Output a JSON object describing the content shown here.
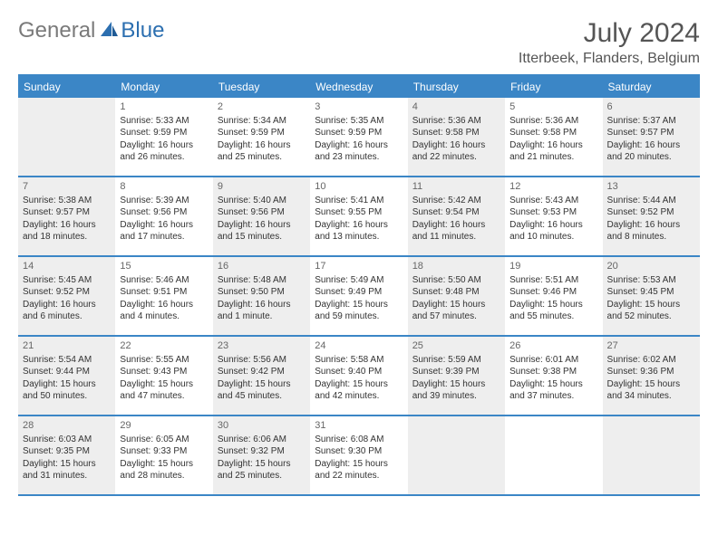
{
  "brand": {
    "general": "General",
    "blue": "Blue"
  },
  "title": {
    "month_year": "July 2024",
    "location": "Itterbeek, Flanders, Belgium"
  },
  "colors": {
    "header_bg": "#3b86c6",
    "header_text": "#ffffff",
    "shade_bg": "#eeeeee",
    "border": "#3b86c6",
    "text": "#333333",
    "brand_gray": "#7a7a7a",
    "brand_blue": "#2c6fb0"
  },
  "dayheads": [
    "Sunday",
    "Monday",
    "Tuesday",
    "Wednesday",
    "Thursday",
    "Friday",
    "Saturday"
  ],
  "weeks": [
    [
      {
        "shade": true
      },
      {
        "n": "1",
        "sunrise": "Sunrise: 5:33 AM",
        "sunset": "Sunset: 9:59 PM",
        "d1": "Daylight: 16 hours",
        "d2": "and 26 minutes."
      },
      {
        "n": "2",
        "sunrise": "Sunrise: 5:34 AM",
        "sunset": "Sunset: 9:59 PM",
        "d1": "Daylight: 16 hours",
        "d2": "and 25 minutes."
      },
      {
        "n": "3",
        "sunrise": "Sunrise: 5:35 AM",
        "sunset": "Sunset: 9:59 PM",
        "d1": "Daylight: 16 hours",
        "d2": "and 23 minutes."
      },
      {
        "n": "4",
        "shade": true,
        "sunrise": "Sunrise: 5:36 AM",
        "sunset": "Sunset: 9:58 PM",
        "d1": "Daylight: 16 hours",
        "d2": "and 22 minutes."
      },
      {
        "n": "5",
        "sunrise": "Sunrise: 5:36 AM",
        "sunset": "Sunset: 9:58 PM",
        "d1": "Daylight: 16 hours",
        "d2": "and 21 minutes."
      },
      {
        "n": "6",
        "shade": true,
        "sunrise": "Sunrise: 5:37 AM",
        "sunset": "Sunset: 9:57 PM",
        "d1": "Daylight: 16 hours",
        "d2": "and 20 minutes."
      }
    ],
    [
      {
        "n": "7",
        "shade": true,
        "sunrise": "Sunrise: 5:38 AM",
        "sunset": "Sunset: 9:57 PM",
        "d1": "Daylight: 16 hours",
        "d2": "and 18 minutes."
      },
      {
        "n": "8",
        "sunrise": "Sunrise: 5:39 AM",
        "sunset": "Sunset: 9:56 PM",
        "d1": "Daylight: 16 hours",
        "d2": "and 17 minutes."
      },
      {
        "n": "9",
        "shade": true,
        "sunrise": "Sunrise: 5:40 AM",
        "sunset": "Sunset: 9:56 PM",
        "d1": "Daylight: 16 hours",
        "d2": "and 15 minutes."
      },
      {
        "n": "10",
        "sunrise": "Sunrise: 5:41 AM",
        "sunset": "Sunset: 9:55 PM",
        "d1": "Daylight: 16 hours",
        "d2": "and 13 minutes."
      },
      {
        "n": "11",
        "shade": true,
        "sunrise": "Sunrise: 5:42 AM",
        "sunset": "Sunset: 9:54 PM",
        "d1": "Daylight: 16 hours",
        "d2": "and 11 minutes."
      },
      {
        "n": "12",
        "sunrise": "Sunrise: 5:43 AM",
        "sunset": "Sunset: 9:53 PM",
        "d1": "Daylight: 16 hours",
        "d2": "and 10 minutes."
      },
      {
        "n": "13",
        "shade": true,
        "sunrise": "Sunrise: 5:44 AM",
        "sunset": "Sunset: 9:52 PM",
        "d1": "Daylight: 16 hours",
        "d2": "and 8 minutes."
      }
    ],
    [
      {
        "n": "14",
        "shade": true,
        "sunrise": "Sunrise: 5:45 AM",
        "sunset": "Sunset: 9:52 PM",
        "d1": "Daylight: 16 hours",
        "d2": "and 6 minutes."
      },
      {
        "n": "15",
        "sunrise": "Sunrise: 5:46 AM",
        "sunset": "Sunset: 9:51 PM",
        "d1": "Daylight: 16 hours",
        "d2": "and 4 minutes."
      },
      {
        "n": "16",
        "shade": true,
        "sunrise": "Sunrise: 5:48 AM",
        "sunset": "Sunset: 9:50 PM",
        "d1": "Daylight: 16 hours",
        "d2": "and 1 minute."
      },
      {
        "n": "17",
        "sunrise": "Sunrise: 5:49 AM",
        "sunset": "Sunset: 9:49 PM",
        "d1": "Daylight: 15 hours",
        "d2": "and 59 minutes."
      },
      {
        "n": "18",
        "shade": true,
        "sunrise": "Sunrise: 5:50 AM",
        "sunset": "Sunset: 9:48 PM",
        "d1": "Daylight: 15 hours",
        "d2": "and 57 minutes."
      },
      {
        "n": "19",
        "sunrise": "Sunrise: 5:51 AM",
        "sunset": "Sunset: 9:46 PM",
        "d1": "Daylight: 15 hours",
        "d2": "and 55 minutes."
      },
      {
        "n": "20",
        "shade": true,
        "sunrise": "Sunrise: 5:53 AM",
        "sunset": "Sunset: 9:45 PM",
        "d1": "Daylight: 15 hours",
        "d2": "and 52 minutes."
      }
    ],
    [
      {
        "n": "21",
        "shade": true,
        "sunrise": "Sunrise: 5:54 AM",
        "sunset": "Sunset: 9:44 PM",
        "d1": "Daylight: 15 hours",
        "d2": "and 50 minutes."
      },
      {
        "n": "22",
        "sunrise": "Sunrise: 5:55 AM",
        "sunset": "Sunset: 9:43 PM",
        "d1": "Daylight: 15 hours",
        "d2": "and 47 minutes."
      },
      {
        "n": "23",
        "shade": true,
        "sunrise": "Sunrise: 5:56 AM",
        "sunset": "Sunset: 9:42 PM",
        "d1": "Daylight: 15 hours",
        "d2": "and 45 minutes."
      },
      {
        "n": "24",
        "sunrise": "Sunrise: 5:58 AM",
        "sunset": "Sunset: 9:40 PM",
        "d1": "Daylight: 15 hours",
        "d2": "and 42 minutes."
      },
      {
        "n": "25",
        "shade": true,
        "sunrise": "Sunrise: 5:59 AM",
        "sunset": "Sunset: 9:39 PM",
        "d1": "Daylight: 15 hours",
        "d2": "and 39 minutes."
      },
      {
        "n": "26",
        "sunrise": "Sunrise: 6:01 AM",
        "sunset": "Sunset: 9:38 PM",
        "d1": "Daylight: 15 hours",
        "d2": "and 37 minutes."
      },
      {
        "n": "27",
        "shade": true,
        "sunrise": "Sunrise: 6:02 AM",
        "sunset": "Sunset: 9:36 PM",
        "d1": "Daylight: 15 hours",
        "d2": "and 34 minutes."
      }
    ],
    [
      {
        "n": "28",
        "shade": true,
        "sunrise": "Sunrise: 6:03 AM",
        "sunset": "Sunset: 9:35 PM",
        "d1": "Daylight: 15 hours",
        "d2": "and 31 minutes."
      },
      {
        "n": "29",
        "sunrise": "Sunrise: 6:05 AM",
        "sunset": "Sunset: 9:33 PM",
        "d1": "Daylight: 15 hours",
        "d2": "and 28 minutes."
      },
      {
        "n": "30",
        "shade": true,
        "sunrise": "Sunrise: 6:06 AM",
        "sunset": "Sunset: 9:32 PM",
        "d1": "Daylight: 15 hours",
        "d2": "and 25 minutes."
      },
      {
        "n": "31",
        "sunrise": "Sunrise: 6:08 AM",
        "sunset": "Sunset: 9:30 PM",
        "d1": "Daylight: 15 hours",
        "d2": "and 22 minutes."
      },
      {
        "shade": true
      },
      {},
      {
        "shade": true
      }
    ]
  ]
}
